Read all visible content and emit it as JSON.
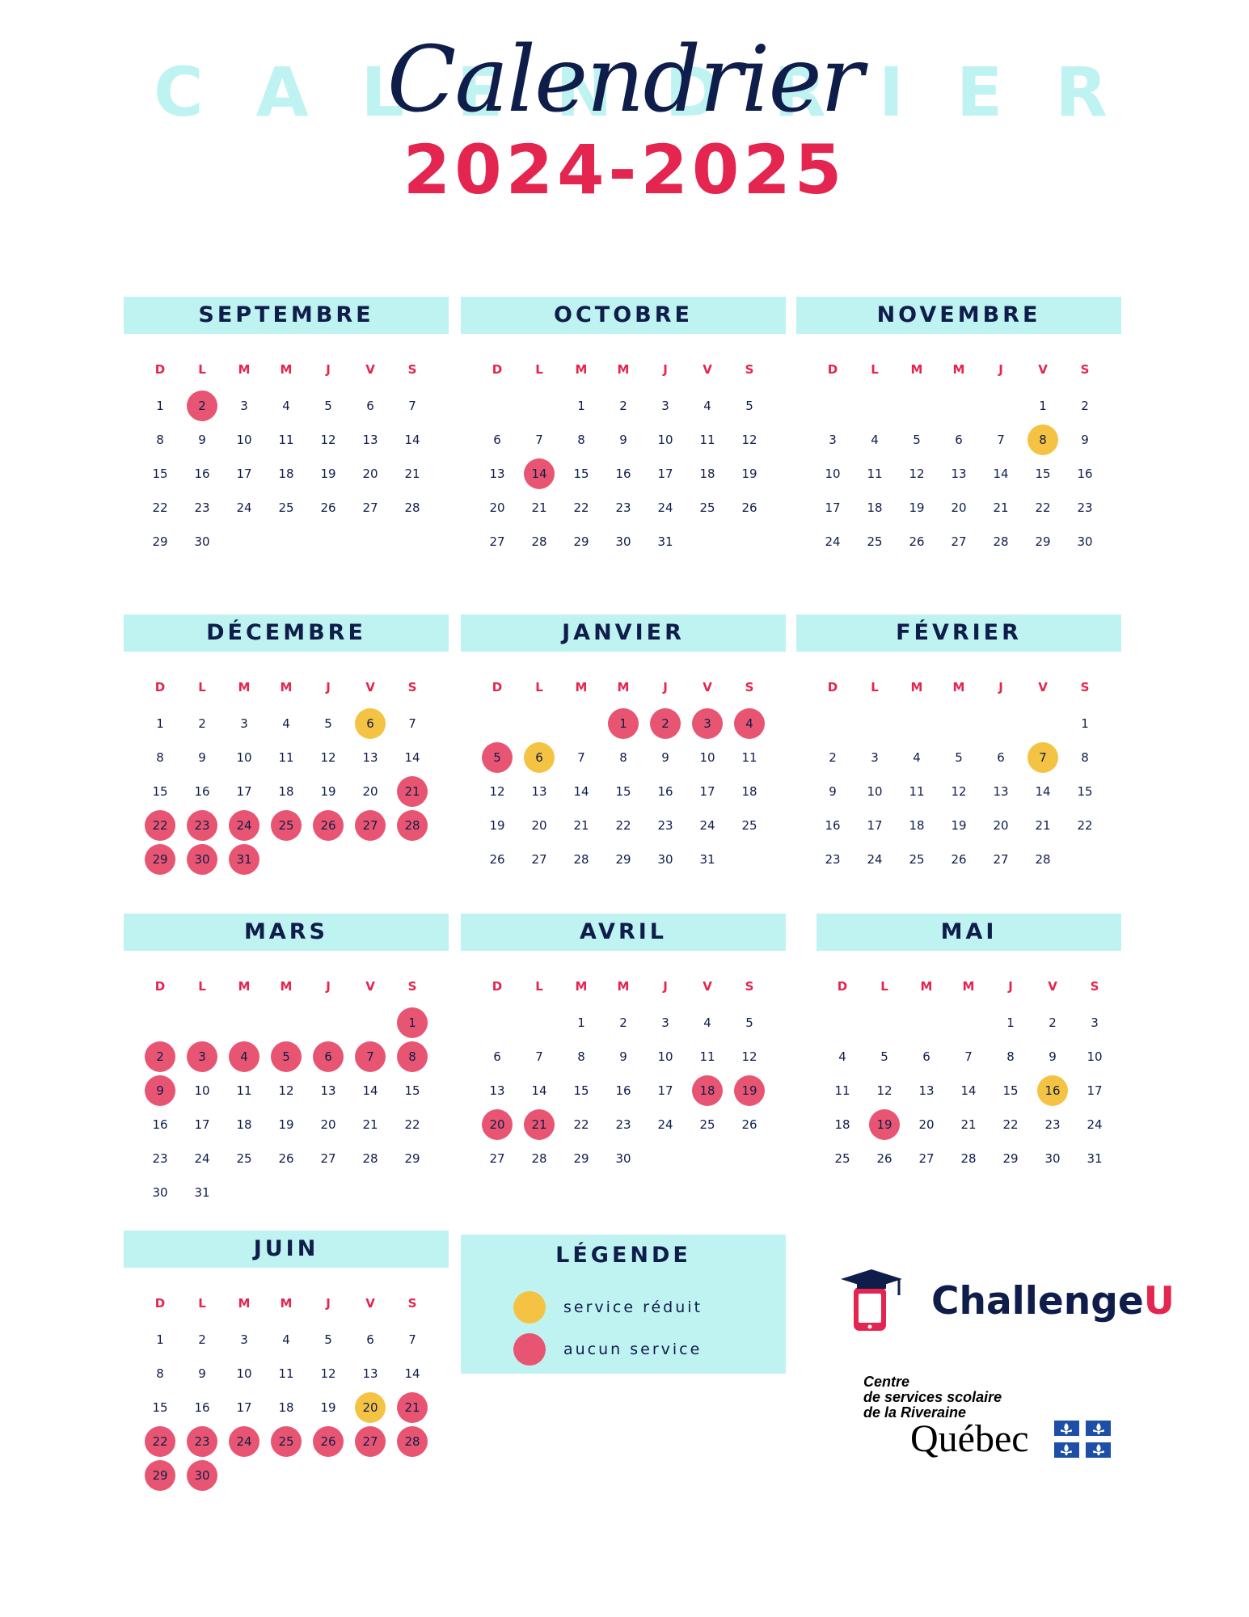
{
  "header": {
    "background_word_letters": [
      "C",
      "A",
      "L",
      "E",
      "N",
      "D",
      "R",
      "I",
      "E",
      "R"
    ],
    "script_title": "Calendrier",
    "year": "2024-2025"
  },
  "day_abbrevs": [
    "D",
    "L",
    "M",
    "M",
    "J",
    "V",
    "S"
  ],
  "colors": {
    "header_band": "#bff3f1",
    "navy": "#0f1d4a",
    "accent_red": "#e3254f",
    "no_service": "#e85572",
    "reduced_service": "#f5c343"
  },
  "months": [
    {
      "name": "SEPTEMBRE",
      "first_weekday": 0,
      "days": 30,
      "pink": [
        2
      ],
      "yellow": []
    },
    {
      "name": "OCTOBRE",
      "first_weekday": 2,
      "days": 31,
      "pink": [
        14
      ],
      "yellow": []
    },
    {
      "name": "NOVEMBRE",
      "first_weekday": 5,
      "days": 30,
      "pink": [],
      "yellow": [
        8
      ]
    },
    {
      "name": "DÉCEMBRE",
      "first_weekday": 0,
      "days": 31,
      "pink": [
        21,
        22,
        23,
        24,
        25,
        26,
        27,
        28,
        29,
        30,
        31
      ],
      "yellow": [
        6
      ]
    },
    {
      "name": "JANVIER",
      "first_weekday": 3,
      "days": 31,
      "pink": [
        1,
        2,
        3,
        4,
        5
      ],
      "yellow": [
        6
      ]
    },
    {
      "name": "FÉVRIER",
      "first_weekday": 6,
      "days": 28,
      "pink": [],
      "yellow": [
        7
      ]
    },
    {
      "name": "MARS",
      "first_weekday": 6,
      "days": 31,
      "pink": [
        1,
        2,
        3,
        4,
        5,
        6,
        7,
        8,
        9
      ],
      "yellow": []
    },
    {
      "name": "AVRIL",
      "first_weekday": 2,
      "days": 30,
      "pink": [
        18,
        19,
        20,
        21
      ],
      "yellow": []
    },
    {
      "name": "MAI",
      "first_weekday": 4,
      "days": 31,
      "pink": [
        19
      ],
      "yellow": [
        16
      ]
    },
    {
      "name": "JUIN",
      "first_weekday": 0,
      "days": 30,
      "pink": [
        21,
        22,
        23,
        24,
        25,
        26,
        27,
        28,
        29,
        30
      ],
      "yellow": [
        20
      ]
    }
  ],
  "legend": {
    "title": "LÉGENDE",
    "items": [
      {
        "label": "service réduit",
        "color": "#f5c343"
      },
      {
        "label": "aucun service",
        "color": "#e85572"
      }
    ]
  },
  "logos": {
    "challengeu": {
      "main": "Challenge",
      "accent": "U",
      "icon": "phone-graduation-cap-icon"
    },
    "centre": {
      "lines": [
        "Centre",
        "de services scolaire",
        "de la Riveraine"
      ],
      "government": "Québec",
      "flag_icon": "fleurdelise-flag-icon"
    }
  }
}
